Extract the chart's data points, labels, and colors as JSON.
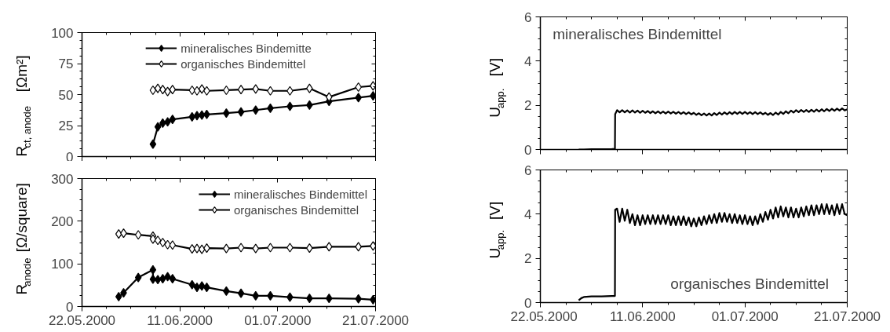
{
  "chart_data": [
    {
      "type": "line",
      "ylabel": "R$_{ct, anode}$ [Ωm²]",
      "xlim": [
        "2000-05-22",
        "2000-07-21"
      ],
      "xticks": [
        {
          "value": "2000-05-22",
          "label": null
        },
        {
          "value": "2000-06-11",
          "label": null
        },
        {
          "value": "2000-07-01",
          "label": null
        },
        {
          "value": "2000-07-21",
          "label": null
        }
      ],
      "ylim": [
        0,
        100
      ],
      "yticks": [
        0,
        25,
        50,
        75,
        100
      ],
      "tick_labels": "y",
      "legend": "top",
      "line_style": "solid",
      "marker": "diamond",
      "x": [
        "2000-06-05T12:00",
        "2000-06-06T12:00",
        "2000-06-07T12:00",
        "2000-06-08T12:00",
        "2000-06-09T12:00",
        "2000-06-13T12:00",
        "2000-06-14T12:00",
        "2000-06-15T12:00",
        "2000-06-16T12:00",
        "2000-06-20T12:00",
        "2000-06-23T12:00",
        "2000-06-26T12:00",
        "2000-06-29T12:00",
        "2000-07-03T12:00",
        "2000-07-07T12:00",
        "2000-07-11T12:00",
        "2000-07-17T12:00",
        "2000-07-20T12:00"
      ],
      "series": [
        {
          "name": "mineralisches Bindemitte",
          "color": "#000000",
          "values": [
            10,
            24,
            27,
            28,
            30,
            32,
            33,
            33.5,
            34,
            35,
            36,
            37.5,
            39,
            40.5,
            41.5,
            44.5,
            47.5,
            49
          ]
        },
        {
          "name": "organisches Bindemittel",
          "color": "#000000",
          "values": [
            53.5,
            55,
            54,
            52.5,
            54,
            53.5,
            53,
            54.5,
            53,
            53.5,
            54,
            54.5,
            53,
            53,
            55,
            48,
            56,
            57
          ]
        }
      ]
    },
    {
      "type": "line",
      "ylabel": "R$_{anode}$ [Ω/square]",
      "xlim": [
        "2000-05-22",
        "2000-07-21"
      ],
      "xticks": [
        {
          "value": "2000-05-22",
          "label": "22.05.2000"
        },
        {
          "value": "2000-06-11",
          "label": "11.06.2000"
        },
        {
          "value": "2000-07-01",
          "label": "01.07.2000"
        },
        {
          "value": "2000-07-21",
          "label": "21.07.2000"
        }
      ],
      "ylim": [
        0,
        300
      ],
      "yticks": [
        0,
        100,
        200,
        300
      ],
      "legend": "top right",
      "line_style": "solid",
      "marker": "diamond",
      "x": [
        "2000-05-29T12:00",
        "2000-05-30T12:00",
        "2000-06-02T12:00",
        "2000-06-05T12:00",
        "2000-06-05T12:00",
        "2000-06-06T12:00",
        "2000-06-07T12:00",
        "2000-06-08T12:00",
        "2000-06-09T12:00",
        "2000-06-13T12:00",
        "2000-06-14T12:00",
        "2000-06-15T12:00",
        "2000-06-16T12:00",
        "2000-06-20T12:00",
        "2000-06-23T12:00",
        "2000-06-26T12:00",
        "2000-06-29T12:00",
        "2000-07-03T12:00",
        "2000-07-07T12:00",
        "2000-07-11T12:00",
        "2000-07-17T12:00",
        "2000-07-20T12:00"
      ],
      "series": [
        {
          "name": "mineralisches Bindemittel",
          "color": "#000000",
          "values": [
            23,
            32,
            68,
            86,
            64,
            63,
            65,
            70,
            65,
            51,
            45,
            48,
            45,
            36,
            31,
            25,
            25,
            22,
            19,
            19,
            18,
            16
          ]
        },
        {
          "name": "organisches Bindemittel",
          "color": "#000000",
          "values": [
            170,
            172,
            168,
            165,
            158,
            155,
            150,
            145,
            144,
            135,
            136,
            134,
            137,
            136,
            138,
            136,
            138,
            138,
            137,
            140,
            140,
            142
          ]
        }
      ]
    },
    {
      "type": "line",
      "ylabel": "U$_{app.}$ [V]",
      "annotations": [
        "mineralisches Bindemittel"
      ],
      "xlim": [
        "2000-05-22",
        "2000-07-21"
      ],
      "xticks": [
        {
          "value": "2000-05-22",
          "label": null
        },
        {
          "value": "2000-06-11",
          "label": null
        },
        {
          "value": "2000-07-01",
          "label": null
        },
        {
          "value": "2000-07-21",
          "label": null
        }
      ],
      "ylim": [
        0,
        6
      ],
      "yticks": [
        0,
        2,
        4,
        6
      ],
      "tick_labels": "y",
      "line_style": "solid",
      "x": [
        "2000-05-29T12:00",
        "2000-05-30",
        "2000-05-30T12:00",
        "2000-06-01",
        "2000-06-03",
        "2000-06-05",
        "2000-06-05T14:00",
        "2000-06-05T15:00",
        "2000-06-06",
        "2000-06-06T12:00",
        "2000-06-07",
        "2000-06-07T12:00",
        "2000-06-08",
        "2000-06-08T12:00",
        "2000-06-09",
        "2000-06-09T12:00",
        "2000-06-10",
        "2000-06-10T12:00",
        "2000-06-11",
        "2000-06-11T12:00",
        "2000-06-12",
        "2000-06-12T12:00",
        "2000-06-13",
        "2000-06-13T12:00",
        "2000-06-14",
        "2000-06-14T12:00",
        "2000-06-15",
        "2000-06-15T12:00",
        "2000-06-16",
        "2000-06-16T12:00",
        "2000-06-17",
        "2000-06-17T12:00",
        "2000-06-18",
        "2000-06-18T12:00",
        "2000-06-19",
        "2000-06-19T12:00",
        "2000-06-20",
        "2000-06-20T12:00",
        "2000-06-21",
        "2000-06-21T12:00",
        "2000-06-22",
        "2000-06-22T12:00",
        "2000-06-23",
        "2000-06-23T12:00",
        "2000-06-24",
        "2000-06-24T12:00",
        "2000-06-25",
        "2000-06-25T12:00",
        "2000-06-26",
        "2000-06-26T12:00",
        "2000-06-27",
        "2000-06-27T12:00",
        "2000-06-28",
        "2000-06-28T12:00",
        "2000-06-29",
        "2000-06-29T12:00",
        "2000-06-30",
        "2000-06-30T12:00",
        "2000-07-01",
        "2000-07-01T12:00",
        "2000-07-02",
        "2000-07-02T12:00",
        "2000-07-03",
        "2000-07-03T12:00",
        "2000-07-04",
        "2000-07-04T12:00",
        "2000-07-05",
        "2000-07-05T12:00",
        "2000-07-06",
        "2000-07-06T12:00",
        "2000-07-07",
        "2000-07-07T12:00",
        "2000-07-08",
        "2000-07-08T12:00",
        "2000-07-09",
        "2000-07-09T12:00",
        "2000-07-10",
        "2000-07-10T12:00",
        "2000-07-11",
        "2000-07-11T12:00",
        "2000-07-12",
        "2000-07-12T12:00",
        "2000-07-13",
        "2000-07-13T12:00",
        "2000-07-14",
        "2000-07-14T12:00",
        "2000-07-15",
        "2000-07-15T12:00",
        "2000-07-16",
        "2000-07-16T12:00",
        "2000-07-17",
        "2000-07-17T12:00",
        "2000-07-18",
        "2000-07-18T12:00",
        "2000-07-19",
        "2000-07-19T12:00",
        "2000-07-20",
        "2000-07-20T12:00",
        "2000-07-21"
      ],
      "series": [
        {
          "color": "#000000",
          "values": [
            0,
            0,
            0,
            0.01,
            0.01,
            0.02,
            0.03,
            1.6,
            1.78,
            1.68,
            1.78,
            1.68,
            1.77,
            1.67,
            1.77,
            1.67,
            1.76,
            1.66,
            1.75,
            1.66,
            1.74,
            1.65,
            1.73,
            1.64,
            1.73,
            1.64,
            1.72,
            1.63,
            1.72,
            1.63,
            1.71,
            1.62,
            1.7,
            1.61,
            1.69,
            1.6,
            1.68,
            1.59,
            1.66,
            1.57,
            1.64,
            1.55,
            1.63,
            1.54,
            1.63,
            1.54,
            1.65,
            1.56,
            1.67,
            1.58,
            1.68,
            1.59,
            1.69,
            1.6,
            1.7,
            1.61,
            1.7,
            1.61,
            1.7,
            1.61,
            1.69,
            1.6,
            1.69,
            1.6,
            1.68,
            1.59,
            1.66,
            1.57,
            1.65,
            1.56,
            1.67,
            1.58,
            1.7,
            1.61,
            1.73,
            1.64,
            1.76,
            1.67,
            1.78,
            1.69,
            1.79,
            1.7,
            1.79,
            1.7,
            1.8,
            1.71,
            1.81,
            1.72,
            1.82,
            1.73,
            1.83,
            1.74,
            1.84,
            1.75,
            1.85,
            1.76,
            1.86,
            1.77,
            1.82
          ]
        }
      ]
    },
    {
      "type": "line",
      "ylabel": "U$_{app.}$ [V]",
      "annotations": [
        "organisches Bindemittel"
      ],
      "xlim": [
        "2000-05-22",
        "2000-07-21"
      ],
      "xticks": [
        {
          "value": "2000-05-22",
          "label": "22.05.2000"
        },
        {
          "value": "2000-06-11",
          "label": "11.06.2000"
        },
        {
          "value": "2000-07-01",
          "label": "01.07.2000"
        },
        {
          "value": "2000-07-21",
          "label": "21.07.2000"
        }
      ],
      "ylim": [
        0,
        6
      ],
      "yticks": [
        0,
        2,
        4,
        6
      ],
      "line_style": "solid",
      "x": [
        "2000-05-29T12:00",
        "2000-05-30",
        "2000-05-30T12:00",
        "2000-06-01",
        "2000-06-03",
        "2000-06-05",
        "2000-06-05T14:00",
        "2000-06-05T15:00",
        "2000-06-06",
        "2000-06-06T12:00",
        "2000-06-07",
        "2000-06-07T12:00",
        "2000-06-08",
        "2000-06-08T12:00",
        "2000-06-09",
        "2000-06-09T12:00",
        "2000-06-10",
        "2000-06-10T12:00",
        "2000-06-11",
        "2000-06-11T12:00",
        "2000-06-12",
        "2000-06-12T12:00",
        "2000-06-13",
        "2000-06-13T12:00",
        "2000-06-14",
        "2000-06-14T12:00",
        "2000-06-15",
        "2000-06-15T12:00",
        "2000-06-16",
        "2000-06-16T12:00",
        "2000-06-17",
        "2000-06-17T12:00",
        "2000-06-18",
        "2000-06-18T12:00",
        "2000-06-19",
        "2000-06-19T12:00",
        "2000-06-20",
        "2000-06-20T12:00",
        "2000-06-21",
        "2000-06-21T12:00",
        "2000-06-22",
        "2000-06-22T12:00",
        "2000-06-23",
        "2000-06-23T12:00",
        "2000-06-24",
        "2000-06-24T12:00",
        "2000-06-25",
        "2000-06-25T12:00",
        "2000-06-26",
        "2000-06-26T12:00",
        "2000-06-27",
        "2000-06-27T12:00",
        "2000-06-28",
        "2000-06-28T12:00",
        "2000-06-29",
        "2000-06-29T12:00",
        "2000-06-30",
        "2000-06-30T12:00",
        "2000-07-01",
        "2000-07-01T12:00",
        "2000-07-02",
        "2000-07-02T12:00",
        "2000-07-03",
        "2000-07-03T12:00",
        "2000-07-04",
        "2000-07-04T12:00",
        "2000-07-05",
        "2000-07-05T12:00",
        "2000-07-06",
        "2000-07-06T12:00",
        "2000-07-07",
        "2000-07-07T12:00",
        "2000-07-08",
        "2000-07-08T12:00",
        "2000-07-09",
        "2000-07-09T12:00",
        "2000-07-10",
        "2000-07-10T12:00",
        "2000-07-11",
        "2000-07-11T12:00",
        "2000-07-12",
        "2000-07-12T12:00",
        "2000-07-13",
        "2000-07-13T12:00",
        "2000-07-14",
        "2000-07-14T12:00",
        "2000-07-15",
        "2000-07-15T12:00",
        "2000-07-16",
        "2000-07-16T12:00",
        "2000-07-17",
        "2000-07-17T12:00",
        "2000-07-18",
        "2000-07-18T12:00",
        "2000-07-19",
        "2000-07-19T12:00",
        "2000-07-20",
        "2000-07-20T12:00",
        "2000-07-21"
      ],
      "series": [
        {
          "color": "#000000",
          "values": [
            0.1,
            0.2,
            0.25,
            0.28,
            0.28,
            0.3,
            0.3,
            4.2,
            4.25,
            3.65,
            4.25,
            3.7,
            4.2,
            3.6,
            4.0,
            3.5,
            3.95,
            3.5,
            3.95,
            3.55,
            3.95,
            3.55,
            3.95,
            3.55,
            3.95,
            3.55,
            3.95,
            3.55,
            3.95,
            3.5,
            3.9,
            3.5,
            3.9,
            3.5,
            3.9,
            3.5,
            3.85,
            3.45,
            3.8,
            3.45,
            3.85,
            3.5,
            3.9,
            3.55,
            3.95,
            3.6,
            4.0,
            3.6,
            4.05,
            3.65,
            4.05,
            3.65,
            4.0,
            3.6,
            4.0,
            3.6,
            3.95,
            3.55,
            3.95,
            3.55,
            3.9,
            3.5,
            3.9,
            3.55,
            4.0,
            3.65,
            4.1,
            3.75,
            4.2,
            3.8,
            4.3,
            3.85,
            4.35,
            3.9,
            4.3,
            3.85,
            4.3,
            3.85,
            4.25,
            3.85,
            4.3,
            3.9,
            4.35,
            3.95,
            4.4,
            3.95,
            4.4,
            4.0,
            4.45,
            4.0,
            4.45,
            4.0,
            4.4,
            3.95,
            4.45,
            4.0,
            4.45,
            4.0,
            3.95
          ]
        }
      ]
    }
  ]
}
